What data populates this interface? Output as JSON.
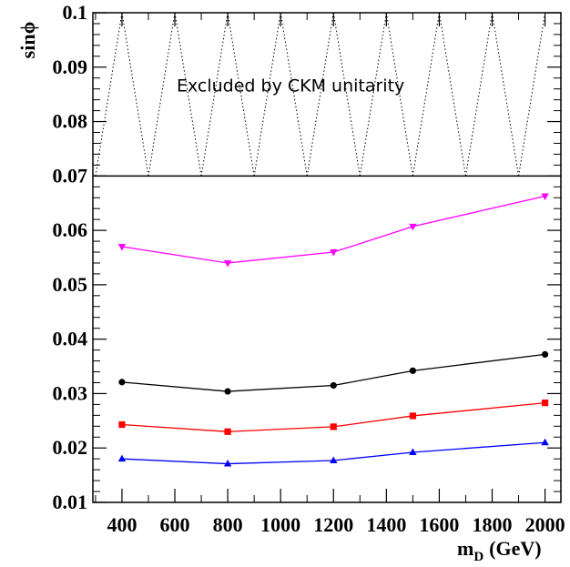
{
  "chart_data": {
    "type": "line",
    "xlabel": "m_D (GeV)",
    "xlabel_main": "m",
    "xlabel_sub": "D",
    "xlabel_unit": "(GeV)",
    "ylabel": "sinϕ",
    "xlim": [
      290,
      2060
    ],
    "ylim": [
      0.01,
      0.1
    ],
    "xticks": [
      400,
      600,
      800,
      1000,
      1200,
      1400,
      1600,
      1800,
      2000
    ],
    "xtick_labels": [
      "400",
      "600",
      "800",
      "1000",
      "1200",
      "1400",
      "1600",
      "1800",
      "2000"
    ],
    "yticks": [
      0.01,
      0.02,
      0.03,
      0.04,
      0.05,
      0.06,
      0.07,
      0.08,
      0.09,
      0.1
    ],
    "ytick_labels": [
      "0.01",
      "0.02",
      "0.03",
      "0.04",
      "0.05",
      "0.06",
      "0.07",
      "0.08",
      "0.09",
      "0.1"
    ],
    "excluded_region": {
      "ymin": 0.07,
      "ymax": 0.1,
      "label": "Excluded by CKM unitarity",
      "apex_x": [
        400,
        600,
        800,
        1000,
        1200,
        1400,
        1600,
        1800,
        2000
      ]
    },
    "series": [
      {
        "color": "#ff00ff",
        "marker": "triangle-down",
        "x": [
          400,
          800,
          1200,
          1500,
          2000
        ],
        "values": [
          0.057,
          0.054,
          0.056,
          0.0607,
          0.0663
        ]
      },
      {
        "color": "#000000",
        "marker": "circle",
        "x": [
          400,
          800,
          1200,
          1500,
          2000
        ],
        "values": [
          0.0321,
          0.0304,
          0.0315,
          0.0342,
          0.0372
        ]
      },
      {
        "color": "#ff0000",
        "marker": "square",
        "x": [
          400,
          800,
          1200,
          1500,
          2000
        ],
        "values": [
          0.0243,
          0.023,
          0.0239,
          0.0259,
          0.0283
        ]
      },
      {
        "color": "#0000ff",
        "marker": "triangle-up",
        "x": [
          400,
          800,
          1200,
          1500,
          2000
        ],
        "values": [
          0.018,
          0.0171,
          0.0177,
          0.0192,
          0.021
        ]
      }
    ]
  }
}
